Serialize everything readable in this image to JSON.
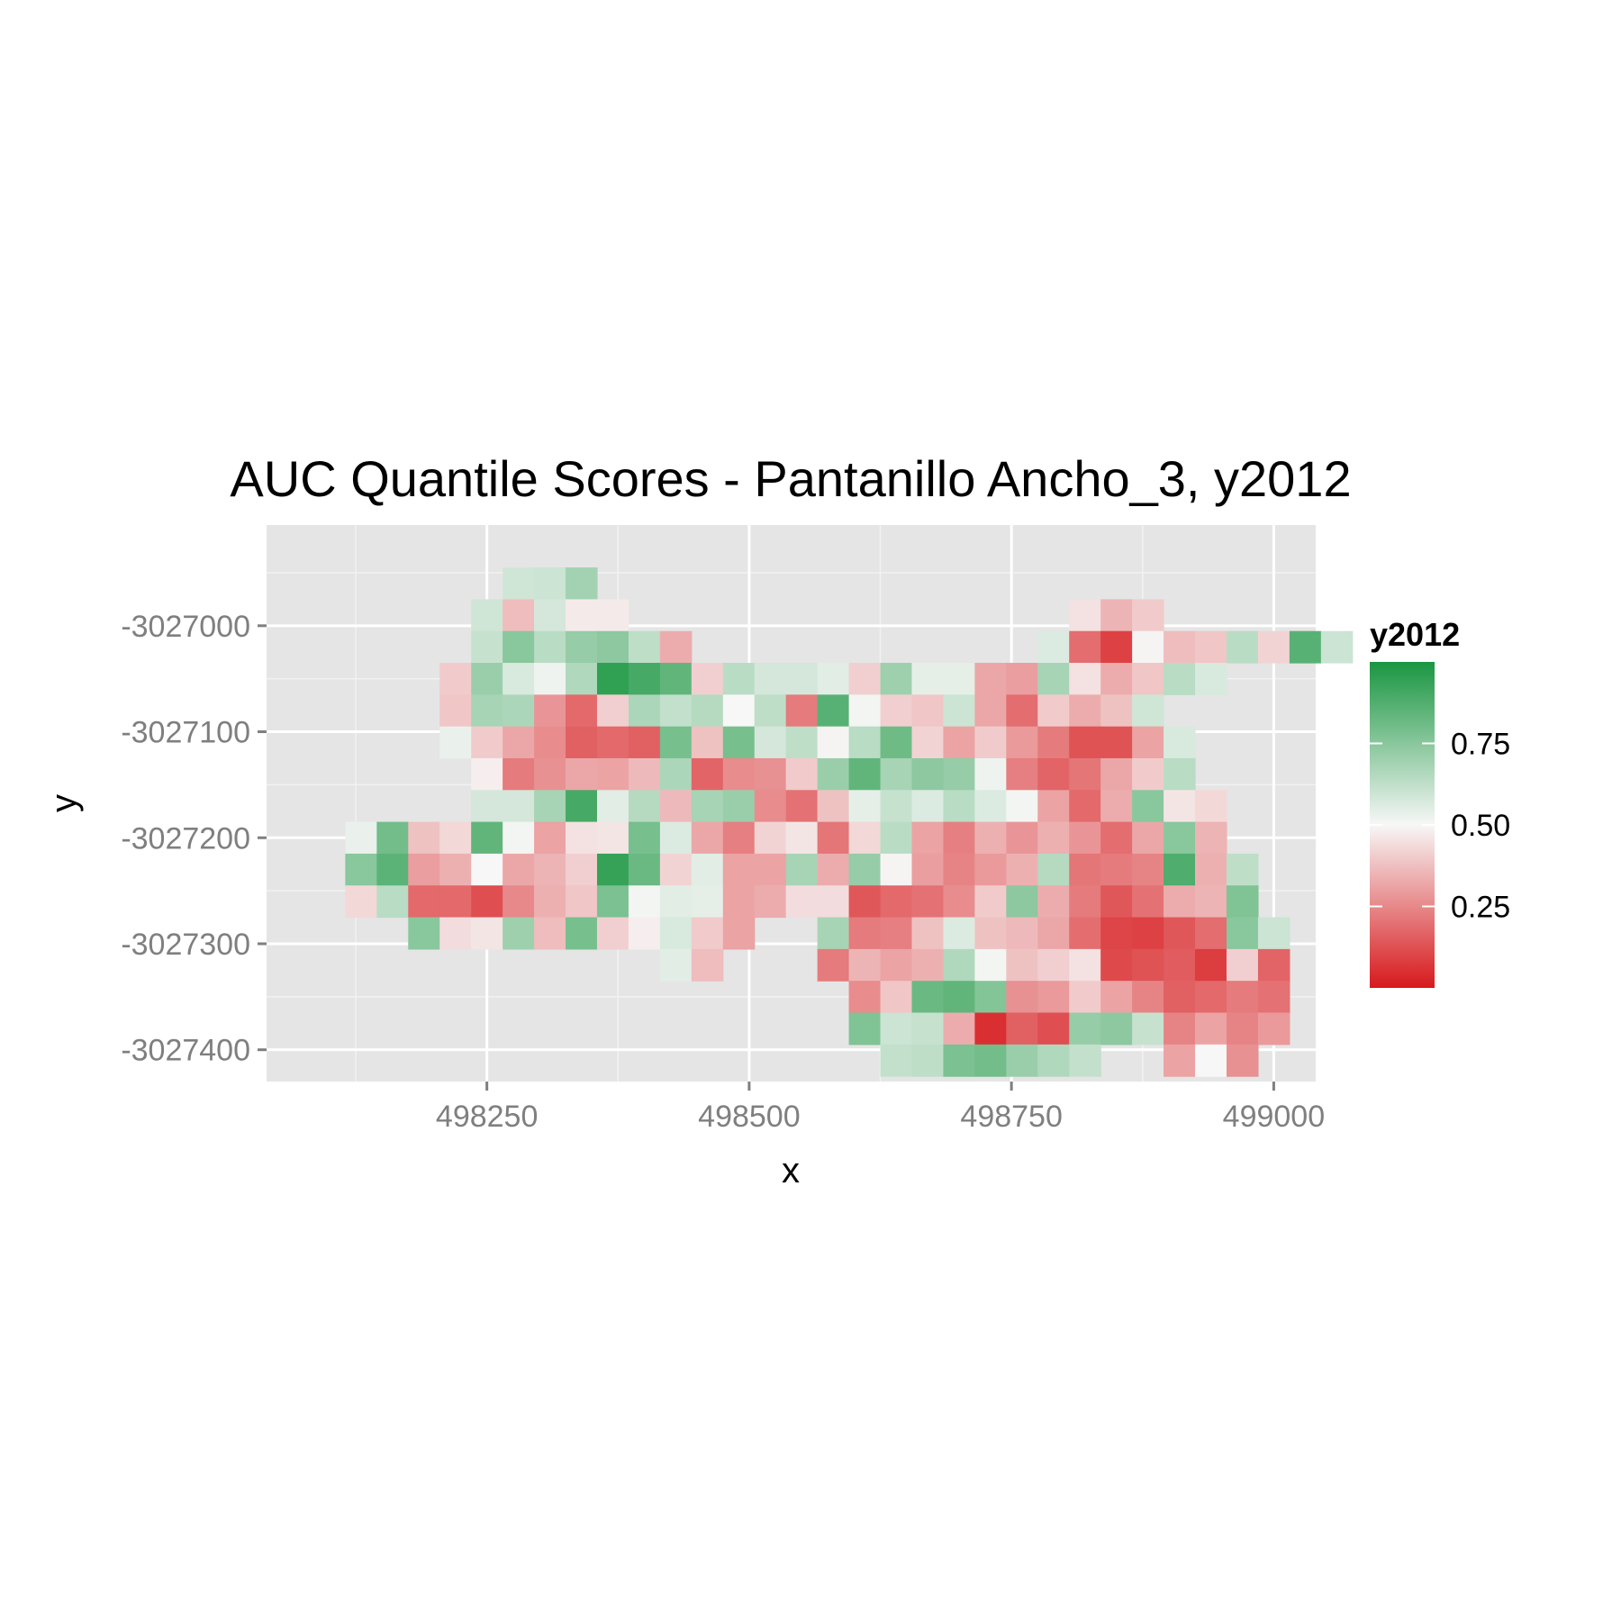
{
  "chart_data": {
    "type": "heatmap",
    "title": "AUC Quantile Scores - Pantanillo Ancho_3, y2012",
    "xlabel": "x",
    "ylabel": "y",
    "xlim": [
      498040,
      499040
    ],
    "ylim": [
      -3027430,
      -3026905
    ],
    "x_ticks": [
      498250,
      498500,
      498750,
      499000
    ],
    "x_tick_labels": [
      "498250",
      "498500",
      "498750",
      "499000"
    ],
    "y_ticks": [
      -3027000,
      -3027100,
      -3027200,
      -3027300,
      -3027400
    ],
    "y_tick_labels": [
      "-3027000",
      "-3027100",
      "-3027200",
      "-3027300",
      "-3027400"
    ],
    "grid": true,
    "legend": {
      "title": "y2012",
      "position": "right",
      "ticks": [
        0.25,
        0.5,
        0.75
      ],
      "tick_labels": [
        "0.25",
        "0.50",
        "0.75"
      ],
      "range": [
        0,
        1
      ],
      "colors": {
        "low": "#d7191c",
        "mid": "#f7f7f7",
        "high": "#1a9641"
      }
    },
    "cell_size": 30,
    "x0": 498100,
    "y_top": -3026930,
    "rows": [
      "................................",
      "......MMG.......................",
      ".....MRMWW..............WR......",
      ".....MGMGGMR...........RGRMRGM..",
      "....RGMMGHHHRMMMMRRGWMMRRMWGM...",
      "....RGGRRRGMGWMRGWRRMRRRRRM.....",
      "....WRRRRRGRGMMWMGRRRRRRRRRM....",
      ".....WRRRRRMRRRRGGGGWRRRRGWM....",
      "...MMGGMRRMGRRRMWMGMWMRRRGWR....",
      ".WGRRGWRRWGMRRRWRRMRRRRRRRGR....",
      ".GGRRWRRRHGRRRGRGRRRRMRRRMGRM...",
      ".RMRRRRRRGWMMRRRRRRRRRGRRRRRRG..",
      "...GRWGRGRWMRR..GRRRRMRRRRRRRGM.",
      "...........MR...RRRRRWRRWRRRRRRR",
      ".................RRGGGRRRRRRRRRR",
      ".................GMMRRRRRGGMRRRR",
      "..................MMGGGMMM..RWR."
    ],
    "values": [
      [],
      [
        null,
        null,
        null,
        null,
        null,
        null,
        0.59,
        0.6,
        0.69
      ],
      [
        null,
        null,
        null,
        null,
        null,
        0.59,
        0.37,
        0.58,
        0.47,
        0.47,
        null,
        null,
        null,
        null,
        null,
        null,
        null,
        null,
        null,
        null,
        null,
        null,
        null,
        null,
        0.45,
        0.35,
        0.4
      ],
      [
        null,
        null,
        null,
        null,
        null,
        0.61,
        0.75,
        0.64,
        0.72,
        0.74,
        0.63,
        0.33,
        null,
        null,
        null,
        null,
        null,
        null,
        null,
        null,
        null,
        null,
        null,
        0.56,
        0.19,
        0.09,
        0.49,
        0.37,
        0.39,
        0.64,
        0.42,
        0.86,
        0.6
      ],
      [
        null,
        null,
        null,
        null,
        0.4,
        0.71,
        0.57,
        0.52,
        0.66,
        0.95,
        0.9,
        0.84,
        0.41,
        0.64,
        0.58,
        0.58,
        0.55,
        0.41,
        0.7,
        0.54,
        0.54,
        0.32,
        0.3,
        0.68,
        0.45,
        0.33,
        0.39,
        0.64,
        0.57
      ],
      [
        null,
        null,
        null,
        null,
        0.39,
        0.68,
        0.67,
        0.28,
        0.18,
        0.41,
        0.67,
        0.62,
        0.65,
        0.5,
        0.63,
        0.22,
        0.86,
        0.51,
        0.41,
        0.39,
        0.6,
        0.32,
        0.19,
        0.4,
        0.33,
        0.38,
        0.59
      ],
      [
        null,
        null,
        null,
        null,
        0.53,
        0.4,
        0.32,
        0.26,
        0.16,
        0.18,
        0.16,
        0.79,
        0.38,
        0.79,
        0.58,
        0.63,
        0.49,
        0.64,
        0.81,
        0.42,
        0.31,
        0.4,
        0.29,
        0.22,
        0.13,
        0.13,
        0.31,
        0.57
      ],
      [
        null,
        null,
        null,
        null,
        null,
        0.48,
        0.22,
        0.27,
        0.32,
        0.31,
        0.36,
        0.67,
        0.17,
        0.26,
        0.27,
        0.4,
        0.71,
        0.84,
        0.68,
        0.74,
        0.72,
        0.52,
        0.23,
        0.17,
        0.21,
        0.32,
        0.4,
        0.64
      ],
      [
        null,
        null,
        null,
        null,
        null,
        0.58,
        0.58,
        0.68,
        0.9,
        0.55,
        0.65,
        0.36,
        0.68,
        0.71,
        0.26,
        0.2,
        0.38,
        0.54,
        0.61,
        0.56,
        0.64,
        0.56,
        0.51,
        0.31,
        0.18,
        0.33,
        0.75,
        0.46,
        0.43
      ],
      [
        null,
        0.53,
        0.8,
        0.38,
        0.43,
        0.84,
        0.51,
        0.31,
        0.45,
        0.46,
        0.79,
        0.56,
        0.32,
        0.23,
        0.42,
        0.46,
        0.21,
        0.43,
        0.64,
        0.31,
        0.23,
        0.34,
        0.28,
        0.34,
        0.28,
        0.19,
        0.32,
        0.75,
        0.35
      ],
      [
        null,
        0.75,
        0.85,
        0.3,
        0.34,
        0.5,
        0.32,
        0.35,
        0.41,
        0.94,
        0.82,
        0.42,
        0.55,
        0.31,
        0.31,
        0.68,
        0.33,
        0.72,
        0.49,
        0.3,
        0.24,
        0.29,
        0.34,
        0.65,
        0.21,
        0.22,
        0.24,
        0.88,
        0.34,
        0.63
      ],
      [
        null,
        0.43,
        0.64,
        0.18,
        0.18,
        0.12,
        0.25,
        0.34,
        0.39,
        0.78,
        0.51,
        0.55,
        0.54,
        0.31,
        0.33,
        0.44,
        0.44,
        0.14,
        0.18,
        0.2,
        0.26,
        0.4,
        0.74,
        0.33,
        0.22,
        0.14,
        0.2,
        0.33,
        0.35,
        0.77
      ],
      [
        null,
        null,
        null,
        0.75,
        0.44,
        0.46,
        0.7,
        0.37,
        0.79,
        0.41,
        0.48,
        0.57,
        0.4,
        0.31,
        null,
        null,
        0.68,
        0.22,
        0.23,
        0.38,
        0.56,
        0.38,
        0.36,
        0.32,
        0.19,
        0.1,
        0.09,
        0.14,
        0.19,
        0.75,
        0.6
      ],
      [
        null,
        null,
        null,
        null,
        null,
        null,
        null,
        null,
        null,
        null,
        null,
        0.55,
        0.37,
        null,
        null,
        null,
        0.22,
        0.35,
        0.31,
        0.34,
        0.66,
        0.51,
        0.38,
        0.41,
        0.45,
        0.11,
        0.13,
        0.15,
        0.08,
        0.41,
        0.17
      ],
      [
        null,
        null,
        null,
        null,
        null,
        null,
        null,
        null,
        null,
        null,
        null,
        null,
        null,
        null,
        null,
        null,
        null,
        0.26,
        0.39,
        0.82,
        0.84,
        0.76,
        0.27,
        0.29,
        0.4,
        0.31,
        0.24,
        0.16,
        0.18,
        0.22,
        0.2
      ],
      [
        null,
        null,
        null,
        null,
        null,
        null,
        null,
        null,
        null,
        null,
        null,
        null,
        null,
        null,
        null,
        null,
        null,
        0.77,
        0.6,
        0.61,
        0.33,
        0.05,
        0.16,
        0.12,
        0.72,
        0.74,
        0.61,
        0.24,
        0.31,
        0.24,
        0.29
      ],
      [
        null,
        null,
        null,
        null,
        null,
        null,
        null,
        null,
        null,
        null,
        null,
        null,
        null,
        null,
        null,
        null,
        null,
        null,
        0.62,
        0.63,
        0.78,
        0.8,
        0.71,
        0.66,
        0.62,
        null,
        null,
        0.31,
        0.5,
        0.27
      ]
    ]
  }
}
